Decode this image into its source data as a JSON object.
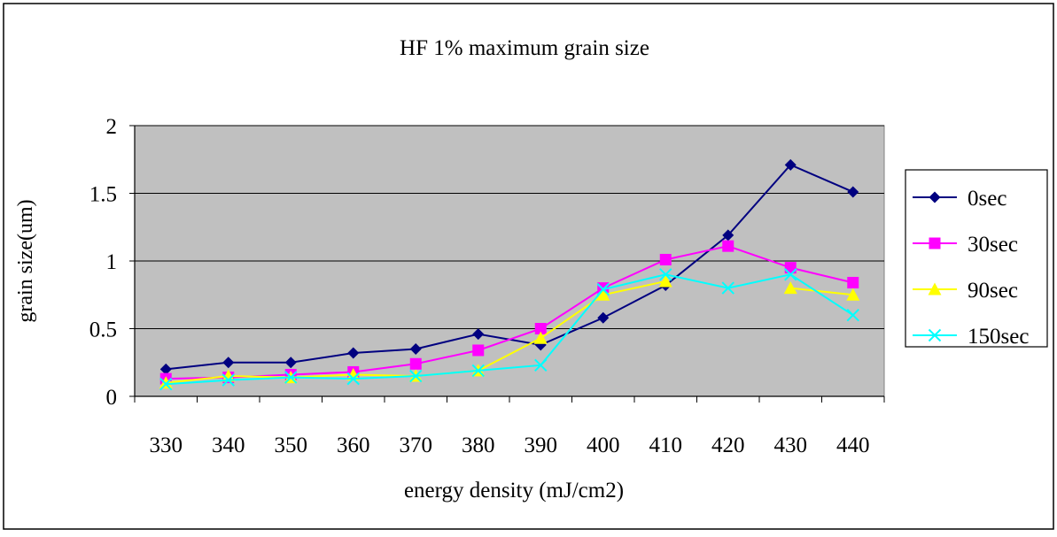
{
  "chart_data": {
    "type": "line",
    "title": "HF 1% maximum grain size",
    "xlabel": "energy density (mJ/cm2)",
    "ylabel": "grain size(um)",
    "categories": [
      "330",
      "340",
      "350",
      "360",
      "370",
      "380",
      "390",
      "400",
      "410",
      "420",
      "430",
      "440"
    ],
    "ylim": [
      0,
      2
    ],
    "yticks": [
      "0",
      "0.5",
      "1",
      "1.5",
      "2"
    ],
    "ytick_values": [
      0,
      0.5,
      1,
      1.5,
      2
    ],
    "grid": true,
    "legend_position": "right",
    "plot_background": "#c0c0c0",
    "series": [
      {
        "name": "0sec",
        "color": "#000080",
        "marker": "diamond",
        "values": [
          0.2,
          0.25,
          0.25,
          0.32,
          0.35,
          0.46,
          0.38,
          0.58,
          0.82,
          1.19,
          1.71,
          1.51
        ]
      },
      {
        "name": "30sec",
        "color": "#ff00ff",
        "marker": "square",
        "values": [
          0.13,
          0.14,
          0.16,
          0.18,
          0.24,
          0.34,
          0.5,
          0.8,
          1.01,
          1.11,
          0.95,
          0.84
        ]
      },
      {
        "name": "90sec",
        "color": "#ffff00",
        "marker": "triangle",
        "values": [
          0.1,
          0.15,
          0.14,
          0.16,
          0.15,
          0.19,
          0.43,
          0.75,
          0.85,
          null,
          0.8,
          0.75
        ]
      },
      {
        "name": "150sec",
        "color": "#00ffff",
        "marker": "x",
        "values": [
          0.09,
          0.12,
          0.14,
          0.13,
          0.15,
          0.19,
          0.23,
          0.79,
          0.9,
          0.8,
          0.9,
          0.6
        ]
      }
    ]
  }
}
